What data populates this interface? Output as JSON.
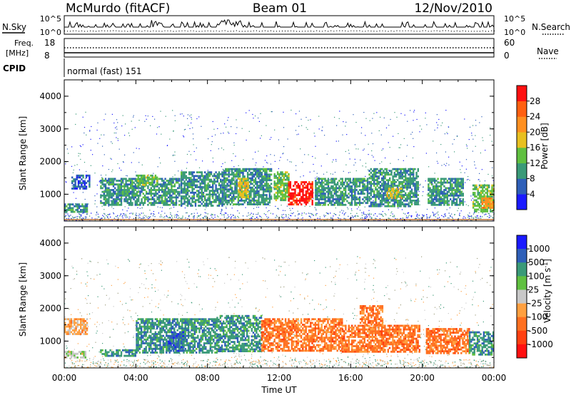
{
  "header": {
    "title": "McMurdo (fitACF)",
    "beam": "Beam 01",
    "date": "12/Nov/2010"
  },
  "top_panels": {
    "nsky": {
      "label": "N.Sky",
      "ticks": [
        "10^5",
        "10^0"
      ]
    },
    "nsearch": {
      "label": "N.Search",
      "ticks": [
        "10^5",
        "10^0"
      ]
    },
    "freq": {
      "label_line1": "Freq.",
      "label_line2": "[MHz]",
      "ticks": [
        "18",
        "8"
      ]
    },
    "nave": {
      "label": "Nave",
      "ticks": [
        "60",
        "0"
      ]
    },
    "cpid": {
      "label": "CPID",
      "value": "normal (fast) 151"
    }
  },
  "x_axis": {
    "label": "Time UT",
    "ticks": [
      "00:00",
      "04:00",
      "08:00",
      "12:00",
      "16:00",
      "20:00",
      "00:00"
    ]
  },
  "chart_data": [
    {
      "type": "heatmap",
      "quantity": "power",
      "xlabel": "Time UT",
      "ylabel": "Slant Range [km]",
      "yticks": [
        "1000",
        "2000",
        "3000",
        "4000"
      ],
      "ylim": [
        180,
        4500
      ],
      "colorbar": {
        "label": "Power [dB]",
        "ticks": [
          "4",
          "8",
          "12",
          "16",
          "20",
          "24",
          "28"
        ],
        "colors": [
          "#1a1aff",
          "#2e5fb8",
          "#3a9a78",
          "#60c040",
          "#e8c020",
          "#ff9020",
          "#ff6010",
          "#ff1010"
        ]
      },
      "bands": [
        {
          "t0": 0.0,
          "t1": 1.3,
          "r0": 480,
          "r1": 720,
          "level": 2
        },
        {
          "t0": 0.4,
          "t1": 1.4,
          "r0": 1200,
          "r1": 1600,
          "level": 1
        },
        {
          "t0": 2.0,
          "t1": 6.4,
          "r0": 650,
          "r1": 1500,
          "level": 2
        },
        {
          "t0": 4.0,
          "t1": 5.2,
          "r0": 1300,
          "r1": 1600,
          "level": 3
        },
        {
          "t0": 6.5,
          "t1": 8.8,
          "r0": 650,
          "r1": 1700,
          "level": 2
        },
        {
          "t0": 8.8,
          "t1": 11.6,
          "r0": 700,
          "r1": 1800,
          "level": 2
        },
        {
          "t0": 9.7,
          "t1": 10.3,
          "r0": 900,
          "r1": 1500,
          "level": 4
        },
        {
          "t0": 11.7,
          "t1": 12.5,
          "r0": 800,
          "r1": 1700,
          "level": 3
        },
        {
          "t0": 12.5,
          "t1": 13.9,
          "r0": 700,
          "r1": 1400,
          "level": 7
        },
        {
          "t0": 14.0,
          "t1": 16.9,
          "r0": 650,
          "r1": 1500,
          "level": 2
        },
        {
          "t0": 17.0,
          "t1": 19.8,
          "r0": 650,
          "r1": 1800,
          "level": 2
        },
        {
          "t0": 18.0,
          "t1": 18.8,
          "r0": 900,
          "r1": 1200,
          "level": 4
        },
        {
          "t0": 20.3,
          "t1": 22.3,
          "r0": 650,
          "r1": 1500,
          "level": 2
        },
        {
          "t0": 22.8,
          "t1": 24.0,
          "r0": 500,
          "r1": 1300,
          "level": 3
        },
        {
          "t0": 23.3,
          "t1": 24.0,
          "r0": 600,
          "r1": 900,
          "level": 5
        }
      ]
    },
    {
      "type": "heatmap",
      "quantity": "velocity",
      "xlabel": "Time UT",
      "ylabel": "Slant Range [km]",
      "yticks": [
        "1000",
        "2000",
        "3000",
        "4000"
      ],
      "ylim": [
        180,
        4500
      ],
      "colorbar": {
        "label": "Velocity [m s",
        "label_sup": "-1",
        "label_end": "]",
        "ticks": [
          "1000",
          "500",
          "100",
          "25",
          "-25",
          "-100",
          "-500",
          "-1000"
        ],
        "colors": [
          "#1a1aff",
          "#2e5fb8",
          "#3a9a78",
          "#60c040",
          "#c8c8c8",
          "#ffa040",
          "#ff7020",
          "#ff4010",
          "#ff1010"
        ]
      },
      "bands": [
        {
          "t0": 0.0,
          "t1": 1.2,
          "r0": 480,
          "r1": 700,
          "level": 4
        },
        {
          "t0": 0.0,
          "t1": 1.3,
          "r0": 1200,
          "r1": 1700,
          "level": 5
        },
        {
          "t0": 2.0,
          "t1": 4.0,
          "r0": 550,
          "r1": 750,
          "level": 2
        },
        {
          "t0": 4.0,
          "t1": 8.5,
          "r0": 650,
          "r1": 1700,
          "level": 2
        },
        {
          "t0": 5.8,
          "t1": 6.6,
          "r0": 700,
          "r1": 1300,
          "level": 1
        },
        {
          "t0": 8.5,
          "t1": 11.0,
          "r0": 700,
          "r1": 1800,
          "level": 2
        },
        {
          "t0": 11.0,
          "t1": 15.5,
          "r0": 700,
          "r1": 1700,
          "level": 6
        },
        {
          "t0": 15.5,
          "t1": 19.8,
          "r0": 650,
          "r1": 1500,
          "level": 6
        },
        {
          "t0": 16.5,
          "t1": 17.8,
          "r0": 1500,
          "r1": 2100,
          "level": 6
        },
        {
          "t0": 20.2,
          "t1": 22.6,
          "r0": 650,
          "r1": 1400,
          "level": 6
        },
        {
          "t0": 22.6,
          "t1": 24.0,
          "r0": 600,
          "r1": 1300,
          "level": 2
        }
      ]
    }
  ]
}
